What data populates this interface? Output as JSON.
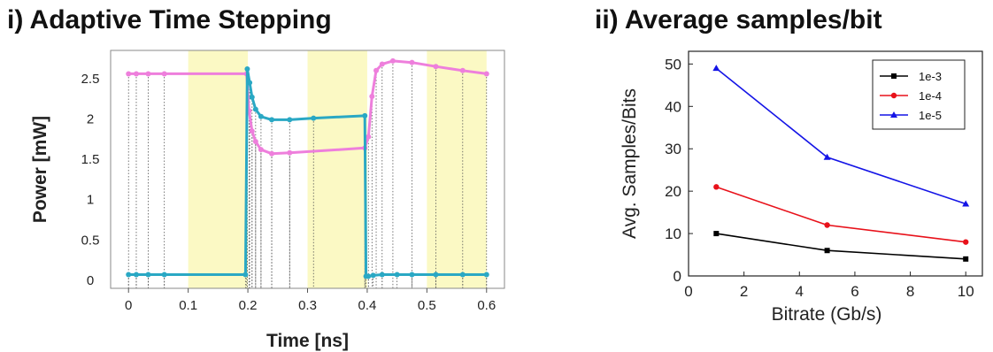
{
  "chart_data": [
    {
      "type": "line",
      "title": "i) Adaptive Time Stepping",
      "xlabel": "Time [ns]",
      "ylabel": "Power [mW]",
      "xlim": [
        -0.03,
        0.63
      ],
      "ylim": [
        -0.1,
        2.85
      ],
      "x_ticks": [
        "0",
        "0.1",
        "0.2",
        "0.3",
        "0.4",
        "0.5",
        "0.6"
      ],
      "x_tick_values": [
        0,
        0.1,
        0.2,
        0.3,
        0.4,
        0.5,
        0.6
      ],
      "y_ticks": [
        "0",
        "0.5",
        "1",
        "1.5",
        "2",
        "2.5"
      ],
      "y_tick_values": [
        0,
        0.5,
        1,
        1.5,
        2,
        2.5
      ],
      "shaded_regions": [
        [
          0.1,
          0.2
        ],
        [
          0.3,
          0.4
        ],
        [
          0.5,
          0.6
        ]
      ],
      "shade_color": "#fbf9c4",
      "series": [
        {
          "color": "#ee7fdc",
          "x": [
            0,
            0.013,
            0.033,
            0.06,
            0.198,
            0.202,
            0.207,
            0.213,
            0.222,
            0.24,
            0.27,
            0.396,
            0.402,
            0.408,
            0.415,
            0.425,
            0.443,
            0.475,
            0.515,
            0.56,
            0.6
          ],
          "y": [
            2.56,
            2.56,
            2.56,
            2.56,
            2.56,
            2.1,
            1.85,
            1.72,
            1.62,
            1.57,
            1.58,
            1.64,
            1.78,
            2.28,
            2.6,
            2.68,
            2.72,
            2.7,
            2.65,
            2.6,
            2.56
          ]
        },
        {
          "color": "#2aa8c4",
          "x": [
            0,
            0.013,
            0.033,
            0.06,
            0.196,
            0.199,
            0.203,
            0.207,
            0.213,
            0.222,
            0.24,
            0.27,
            0.31,
            0.396,
            0.398,
            0.402,
            0.41,
            0.425,
            0.45,
            0.475,
            0.515,
            0.56,
            0.6
          ],
          "y": [
            0.07,
            0.07,
            0.07,
            0.07,
            0.07,
            2.62,
            2.45,
            2.27,
            2.12,
            2.03,
            1.99,
            1.99,
            2.01,
            2.04,
            0.05,
            0.05,
            0.06,
            0.07,
            0.07,
            0.07,
            0.07,
            0.07,
            0.07
          ]
        }
      ],
      "grid": false
    },
    {
      "type": "line",
      "title": "ii) Average samples/bit",
      "xlabel": "Bitrate (Gb/s)",
      "ylabel": "Avg. Samples/Bits",
      "xlim": [
        0,
        10.6
      ],
      "ylim": [
        0,
        53
      ],
      "x_ticks": [
        "0",
        "2",
        "4",
        "6",
        "8",
        "10"
      ],
      "x_tick_values": [
        0,
        2,
        4,
        6,
        8,
        10
      ],
      "y_ticks": [
        "0",
        "10",
        "20",
        "30",
        "40",
        "50"
      ],
      "y_tick_values": [
        0,
        10,
        20,
        30,
        40,
        50
      ],
      "x": [
        1,
        5,
        10
      ],
      "series": [
        {
          "name": "1e-3",
          "color": "#000000",
          "marker": "square",
          "values": [
            10,
            6,
            4
          ]
        },
        {
          "name": "1e-4",
          "color": "#e8111a",
          "marker": "circle",
          "values": [
            21,
            12,
            8
          ]
        },
        {
          "name": "1e-5",
          "color": "#1414e6",
          "marker": "triangle",
          "values": [
            49,
            28,
            17
          ]
        }
      ],
      "legend": "top-right",
      "grid": false
    }
  ]
}
